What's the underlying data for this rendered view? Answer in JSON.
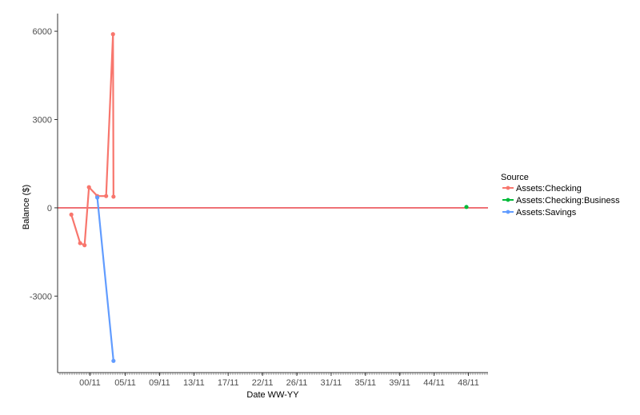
{
  "chart_data": {
    "type": "line",
    "title": "",
    "xlabel": "Date WW-YY",
    "ylabel": "Balance ($)",
    "x_tick_labels": [
      "00/11",
      "05/11",
      "09/11",
      "13/11",
      "17/11",
      "22/11",
      "26/11",
      "31/11",
      "35/11",
      "39/11",
      "44/11",
      "48/11"
    ],
    "x_tick_values": [
      1,
      4.6,
      8.1,
      11.6,
      15.1,
      18.6,
      22.1,
      25.6,
      29.1,
      32.6,
      36.1,
      39.6
    ],
    "xlim": [
      -2.3,
      41.6
    ],
    "y_tick_labels": [
      "-3000",
      "0",
      "3000",
      "6000"
    ],
    "y_tick_values": [
      -3000,
      0,
      3000,
      6000
    ],
    "ylim": [
      -5600,
      6600
    ],
    "reference_line": {
      "y": 0,
      "color": "#e8343a"
    },
    "legend": {
      "title": "Source",
      "position": "right"
    },
    "series": [
      {
        "name": "Assets:Checking",
        "color": "#f8766d",
        "x": [
          -0.9,
          0,
          0.45,
          0.9,
          1.75,
          2.65,
          3.35,
          3.4
        ],
        "y": [
          -230,
          -1200,
          -1270,
          700,
          400,
          400,
          5900,
          380
        ]
      },
      {
        "name": "Assets:Checking:Business",
        "color": "#00ba38",
        "x": [
          39.4
        ],
        "y": [
          30
        ]
      },
      {
        "name": "Assets:Savings",
        "color": "#619cff",
        "x": [
          1.75,
          3.4
        ],
        "y": [
          350,
          -5200
        ]
      }
    ]
  }
}
